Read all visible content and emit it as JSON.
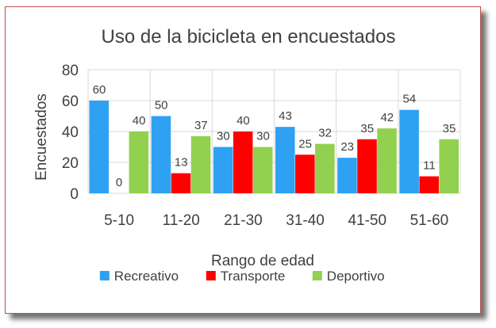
{
  "chart_data": {
    "type": "bar",
    "title": "Uso de la bicicleta en encuestados",
    "xlabel": "Rango de edad",
    "ylabel": "Encuestados",
    "categories": [
      "5-10",
      "11-20",
      "21-30",
      "31-40",
      "41-50",
      "51-60"
    ],
    "series": [
      {
        "name": "Recreativo",
        "values": [
          60,
          50,
          30,
          43,
          23,
          54
        ],
        "color": "#2ea1f2"
      },
      {
        "name": "Transporte",
        "values": [
          0,
          13,
          40,
          25,
          35,
          11
        ],
        "color": "#ff0000"
      },
      {
        "name": "Deportivo",
        "values": [
          40,
          37,
          30,
          32,
          42,
          35
        ],
        "color": "#92d050"
      }
    ],
    "ylim": [
      0,
      80
    ],
    "yticks": [
      0,
      20,
      40,
      60,
      80
    ],
    "grid": true,
    "data_labels": true,
    "legend_position": "bottom"
  },
  "colors": {
    "frame_border": "#c0504d",
    "gridline": "#d9d9d9",
    "text": "#404040"
  }
}
